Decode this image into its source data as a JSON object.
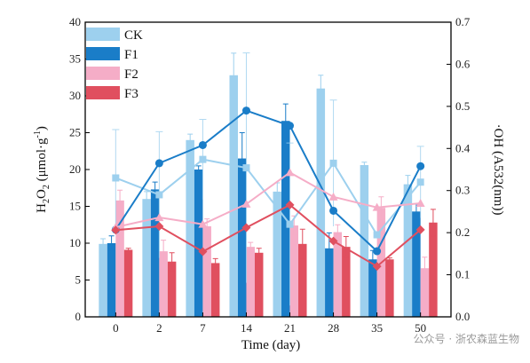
{
  "chart_data": {
    "type": "bar",
    "categories": [
      "0",
      "2",
      "7",
      "14",
      "21",
      "28",
      "35",
      "50"
    ],
    "xlabel": "Time (day)",
    "ylabel_left": {
      "base": "H",
      "sub": "2",
      "mid": "O",
      "sub2": "2",
      "rest": " (μmol·g",
      "sup": "-1",
      "end": ")"
    },
    "ylabel_right": "·OH (A532(nm))",
    "ylim_left": [
      0,
      40
    ],
    "ylim_right": [
      0,
      0.7
    ],
    "yticks_left": [
      "0",
      "5",
      "10",
      "15",
      "20",
      "25",
      "30",
      "35",
      "40"
    ],
    "yticks_right": [
      "0.0",
      "0.1",
      "0.2",
      "0.3",
      "0.4",
      "0.5",
      "0.6",
      "0.7"
    ],
    "legend_position": "top-left",
    "series": [
      {
        "name": "CK",
        "color": "#9dd0ee",
        "bar_values": [
          9.9,
          16.0,
          24.0,
          32.8,
          17.0,
          31.0,
          20.6,
          18.0
        ],
        "bar_errors": [
          0.7,
          1.0,
          0.8,
          3.0,
          1.2,
          1.8,
          0.4,
          1.2
        ],
        "line_values": [
          0.33,
          0.29,
          0.374,
          0.354,
          0.22,
          0.365,
          0.195,
          0.32
        ],
        "line_errors": [
          0.115,
          0.15,
          0.095,
          0.273,
          0.193,
          0.15,
          0.0,
          0.085
        ]
      },
      {
        "name": "F1",
        "color": "#1a7dc8",
        "bar_values": [
          10.0,
          17.3,
          20.0,
          21.5,
          26.6,
          9.3,
          7.8,
          14.3
        ],
        "bar_errors": [
          1.0,
          1.0,
          0.5,
          3.5,
          2.3,
          2.1,
          1.2,
          1.0
        ],
        "line_values": [
          0.207,
          0.365,
          0.408,
          0.49,
          0.454,
          0.252,
          0.156,
          0.358
        ],
        "line_errors": [
          0,
          0,
          0,
          0,
          0,
          0,
          0,
          0
        ]
      },
      {
        "name": "F2",
        "color": "#f5adc7",
        "bar_values": [
          15.8,
          8.9,
          12.3,
          9.5,
          12.4,
          11.5,
          14.8,
          6.6
        ],
        "bar_errors": [
          1.4,
          1.5,
          1.0,
          0.6,
          1.3,
          1.0,
          1.5,
          1.5
        ],
        "line_values": [
          0.213,
          0.236,
          0.22,
          0.268,
          0.343,
          0.285,
          0.26,
          0.27
        ],
        "line_errors": [
          0,
          0,
          0,
          0,
          0,
          0,
          0,
          0
        ]
      },
      {
        "name": "F3",
        "color": "#e04f5f",
        "bar_values": [
          9.1,
          7.5,
          7.3,
          8.7,
          9.9,
          9.5,
          7.8,
          12.8
        ],
        "bar_errors": [
          0.2,
          1.2,
          0.6,
          0.6,
          2.0,
          1.4,
          0.2,
          1.8
        ],
        "line_values": [
          0.206,
          0.215,
          0.155,
          0.212,
          0.266,
          0.18,
          0.12,
          0.207
        ],
        "line_errors": [
          0,
          0,
          0,
          0,
          0,
          0,
          0,
          0
        ]
      }
    ]
  },
  "watermark": "公众号 · 浙农森蓝生物"
}
